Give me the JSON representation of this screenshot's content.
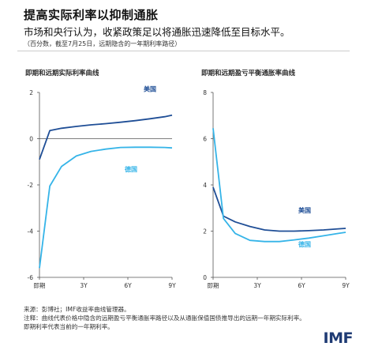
{
  "title": "提高实际利率以抑制通胀",
  "subtitle": "市场和央行认为，收紧政策足以将通胀迅速降低至目标水平。",
  "note": "（百分数，截至7月25日，远期隐含的一年期利率路径）",
  "colors": {
    "us": "#1f4e96",
    "de": "#35b4e8",
    "axis": "#555555",
    "text": "#333333"
  },
  "chart_data": [
    {
      "type": "line",
      "title": "即期和远期实际利率曲线",
      "x": [
        0,
        0.7,
        1.5,
        2.5,
        3.5,
        4.5,
        5.5,
        6.5,
        7.5,
        8.5,
        9.0
      ],
      "xticks": [
        "即期",
        "3Y",
        "6Y",
        "9Y"
      ],
      "xtick_positions": [
        0,
        3,
        6,
        9
      ],
      "ylim": [
        -6,
        2
      ],
      "yticks": [
        -6,
        -4,
        -2,
        0,
        2
      ],
      "series": [
        {
          "name": "美国",
          "values": [
            -0.9,
            0.35,
            0.45,
            0.53,
            0.6,
            0.65,
            0.71,
            0.78,
            0.86,
            0.95,
            1.02
          ]
        },
        {
          "name": "德国",
          "values": [
            -5.6,
            -2.05,
            -1.2,
            -0.75,
            -0.55,
            -0.45,
            -0.38,
            -0.37,
            -0.37,
            -0.38,
            -0.4
          ]
        }
      ]
    },
    {
      "type": "line",
      "title": "即期和远期盈亏平衡通胀率曲线",
      "x": [
        0,
        0.7,
        1.5,
        2.5,
        3.5,
        4.5,
        5.5,
        6.5,
        7.5,
        8.5,
        9.0
      ],
      "xticks": [
        "即期",
        "3Y",
        "6Y",
        "9Y"
      ],
      "xtick_positions": [
        0,
        3,
        6,
        9
      ],
      "ylim": [
        0,
        8
      ],
      "yticks": [
        0,
        2,
        4,
        6,
        8
      ],
      "series": [
        {
          "name": "美国",
          "values": [
            3.9,
            2.65,
            2.4,
            2.2,
            2.05,
            2.0,
            2.0,
            2.02,
            2.05,
            2.1,
            2.12
          ]
        },
        {
          "name": "德国",
          "values": [
            6.45,
            2.55,
            1.9,
            1.6,
            1.55,
            1.55,
            1.62,
            1.7,
            1.8,
            1.9,
            1.95
          ]
        }
      ]
    }
  ],
  "footer": {
    "source": "来源：彭博社；IMF收益率曲线管理器。",
    "note_line1": "注释：曲线代表价格中隐含的远期盈亏平衡通胀率路径以及从通胀保值国债推导出的远期一年期实际利率。",
    "note_line2": "即期利率代表当前的一年期利率。"
  },
  "logo": "IMF"
}
